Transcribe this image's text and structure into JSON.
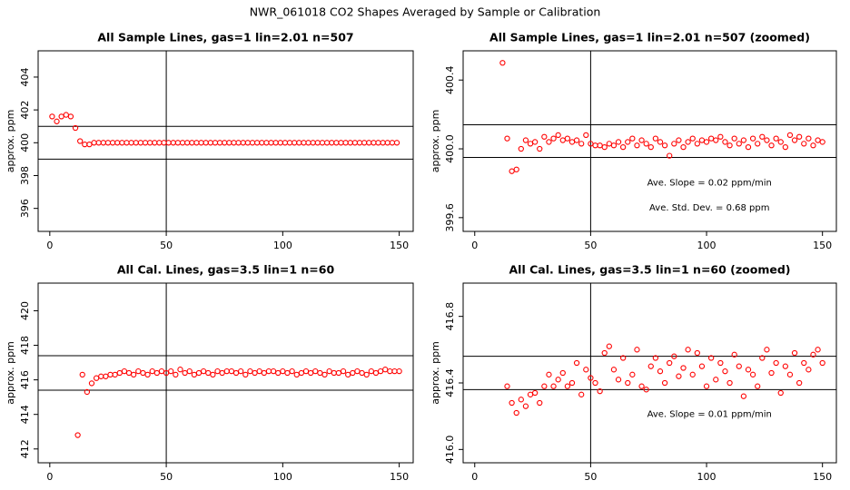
{
  "title": "NWR_061018  CO2 Shapes Averaged by Sample or Calibration",
  "chart_data": [
    {
      "type": "scatter",
      "title": "All Sample Lines, gas=1 lin=2.01 n=507",
      "ylabel": "approx. ppm",
      "color": "#ff0000",
      "xlim": [
        -5,
        156
      ],
      "ylim": [
        394.6,
        405.6
      ],
      "xticks": [
        0,
        50,
        100,
        150
      ],
      "yticks": [
        396,
        398,
        400,
        402,
        404
      ],
      "vline": 50,
      "hlines": [
        401,
        399
      ],
      "annotations": [],
      "x": [
        1,
        3,
        5,
        7,
        9,
        11,
        13,
        15,
        17,
        19,
        21,
        23,
        25,
        27,
        29,
        31,
        33,
        35,
        37,
        39,
        41,
        43,
        45,
        47,
        49,
        51,
        53,
        55,
        57,
        59,
        61,
        63,
        65,
        67,
        69,
        71,
        73,
        75,
        77,
        79,
        81,
        83,
        85,
        87,
        89,
        91,
        93,
        95,
        97,
        99,
        101,
        103,
        105,
        107,
        109,
        111,
        113,
        115,
        117,
        119,
        121,
        123,
        125,
        127,
        129,
        131,
        133,
        135,
        137,
        139,
        141,
        143,
        145,
        147,
        149
      ],
      "values": [
        401.6,
        401.3,
        401.6,
        401.7,
        401.6,
        400.9,
        400.1,
        399.9,
        399.9,
        400.0,
        400,
        400,
        400,
        400,
        400,
        400,
        400,
        400,
        400,
        400,
        400,
        400,
        400,
        400,
        400,
        400,
        400,
        400,
        400,
        400,
        400,
        400,
        400,
        400,
        400,
        400,
        400,
        400,
        400,
        400,
        400,
        400,
        400,
        400,
        400,
        400,
        400,
        400,
        400,
        400,
        400,
        400,
        400,
        400,
        400,
        400,
        400,
        400,
        400,
        400,
        400,
        400,
        400,
        400,
        400,
        400,
        400,
        400,
        400,
        400,
        400,
        400,
        400,
        400,
        400
      ]
    },
    {
      "type": "scatter",
      "title": "All Sample Lines, gas=1 lin=2.01 n=507 (zoomed)",
      "ylabel": "approx. ppm",
      "color": "#ff0000",
      "xlim": [
        -5,
        156
      ],
      "ylim": [
        399.52,
        400.57
      ],
      "xticks": [
        0,
        50,
        100,
        150
      ],
      "yticks": [
        {
          "value": 399.6,
          "label": "399.6"
        },
        {
          "value": 400,
          "label": "400.0"
        },
        400.4
      ],
      "vline": 50,
      "hlines": [
        400.14,
        399.95
      ],
      "annotations": [
        "Ave. Slope =  0.02  ppm/min",
        "Ave. Std. Dev. =  0.68  ppm"
      ],
      "x": [
        12,
        14,
        16,
        18,
        20,
        22,
        24,
        26,
        28,
        30,
        32,
        34,
        36,
        38,
        40,
        42,
        44,
        46,
        48,
        50,
        52,
        54,
        56,
        58,
        60,
        62,
        64,
        66,
        68,
        70,
        72,
        74,
        76,
        78,
        80,
        82,
        84,
        86,
        88,
        90,
        92,
        94,
        96,
        98,
        100,
        102,
        104,
        106,
        108,
        110,
        112,
        114,
        116,
        118,
        120,
        122,
        124,
        126,
        128,
        130,
        132,
        134,
        136,
        138,
        140,
        142,
        144,
        146,
        148,
        150
      ],
      "values": [
        400.5,
        400.06,
        399.87,
        399.88,
        400.0,
        400.05,
        400.03,
        400.04,
        400.0,
        400.07,
        400.04,
        400.06,
        400.08,
        400.05,
        400.06,
        400.04,
        400.05,
        400.03,
        400.08,
        400.03,
        400.02,
        400.02,
        400.01,
        400.03,
        400.02,
        400.04,
        400.01,
        400.04,
        400.06,
        400.02,
        400.05,
        400.03,
        400.01,
        400.06,
        400.04,
        400.02,
        399.96,
        400.03,
        400.05,
        400.01,
        400.04,
        400.06,
        400.03,
        400.05,
        400.04,
        400.06,
        400.05,
        400.07,
        400.04,
        400.02,
        400.06,
        400.03,
        400.05,
        400.01,
        400.06,
        400.03,
        400.07,
        400.05,
        400.02,
        400.06,
        400.04,
        400.01,
        400.08,
        400.05,
        400.07,
        400.03,
        400.06,
        400.02,
        400.05,
        400.04
      ]
    },
    {
      "type": "scatter",
      "title": "All Cal. Lines, gas=3.5 lin=1 n=60",
      "ylabel": "approx. ppm",
      "color": "#ff0000",
      "xlim": [
        -5,
        156
      ],
      "ylim": [
        411.2,
        421.6
      ],
      "xticks": [
        0,
        50,
        100,
        150
      ],
      "yticks": [
        412,
        414,
        416,
        418,
        420
      ],
      "vline": 50,
      "hlines": [
        417.4,
        415.4
      ],
      "annotations": [],
      "x": [
        12,
        14,
        16,
        18,
        20,
        22,
        24,
        26,
        28,
        30,
        32,
        34,
        36,
        38,
        40,
        42,
        44,
        46,
        48,
        50,
        52,
        54,
        56,
        58,
        60,
        62,
        64,
        66,
        68,
        70,
        72,
        74,
        76,
        78,
        80,
        82,
        84,
        86,
        88,
        90,
        92,
        94,
        96,
        98,
        100,
        102,
        104,
        106,
        108,
        110,
        112,
        114,
        116,
        118,
        120,
        122,
        124,
        126,
        128,
        130,
        132,
        134,
        136,
        138,
        140,
        142,
        144,
        146,
        148,
        150
      ],
      "values": [
        412.8,
        416.3,
        415.3,
        415.8,
        416.1,
        416.2,
        416.2,
        416.3,
        416.3,
        416.4,
        416.5,
        416.4,
        416.3,
        416.5,
        416.4,
        416.3,
        416.5,
        416.4,
        416.5,
        416.4,
        416.5,
        416.3,
        416.6,
        416.4,
        416.5,
        416.3,
        416.4,
        416.5,
        416.4,
        416.3,
        416.5,
        416.4,
        416.5,
        416.5,
        416.4,
        416.5,
        416.3,
        416.5,
        416.4,
        416.5,
        416.4,
        416.5,
        416.5,
        416.4,
        416.5,
        416.4,
        416.5,
        416.3,
        416.4,
        416.5,
        416.4,
        416.5,
        416.4,
        416.3,
        416.5,
        416.4,
        416.4,
        416.5,
        416.3,
        416.4,
        416.5,
        416.4,
        416.3,
        416.5,
        416.4,
        416.5,
        416.6,
        416.5,
        416.5,
        416.5
      ]
    },
    {
      "type": "scatter",
      "title": "All Cal. Lines, gas=3.5 lin=1 n=60 (zoomed)",
      "ylabel": "approx. ppm",
      "color": "#ff0000",
      "xlim": [
        -5,
        156
      ],
      "ylim": [
        415.92,
        417.0
      ],
      "xticks": [
        0,
        50,
        100,
        150
      ],
      "yticks": [
        {
          "value": 416,
          "label": "416.0"
        },
        416.4,
        416.8
      ],
      "vline": 50,
      "hlines": [
        416.56,
        416.36
      ],
      "annotations": [
        "Ave. Slope =  0.01  ppm/min"
      ],
      "x": [
        14,
        16,
        18,
        20,
        22,
        24,
        26,
        28,
        30,
        32,
        34,
        36,
        38,
        40,
        42,
        44,
        46,
        48,
        50,
        52,
        54,
        56,
        58,
        60,
        62,
        64,
        66,
        68,
        70,
        72,
        74,
        76,
        78,
        80,
        82,
        84,
        86,
        88,
        90,
        92,
        94,
        96,
        98,
        100,
        102,
        104,
        106,
        108,
        110,
        112,
        114,
        116,
        118,
        120,
        122,
        124,
        126,
        128,
        130,
        132,
        134,
        136,
        138,
        140,
        142,
        144,
        146,
        148,
        150
      ],
      "values": [
        416.38,
        416.28,
        416.22,
        416.3,
        416.26,
        416.33,
        416.34,
        416.28,
        416.38,
        416.45,
        416.38,
        416.42,
        416.46,
        416.38,
        416.4,
        416.52,
        416.33,
        416.48,
        416.43,
        416.4,
        416.35,
        416.58,
        416.62,
        416.48,
        416.42,
        416.55,
        416.4,
        416.45,
        416.6,
        416.38,
        416.36,
        416.5,
        416.55,
        416.47,
        416.4,
        416.52,
        416.56,
        416.44,
        416.49,
        416.6,
        416.45,
        416.58,
        416.5,
        416.38,
        416.55,
        416.42,
        416.52,
        416.47,
        416.4,
        416.57,
        416.5,
        416.32,
        416.48,
        416.45,
        416.38,
        416.55,
        416.6,
        416.46,
        416.52,
        416.34,
        416.5,
        416.45,
        416.58,
        416.4,
        416.52,
        416.48,
        416.57,
        416.6,
        416.52
      ]
    }
  ]
}
